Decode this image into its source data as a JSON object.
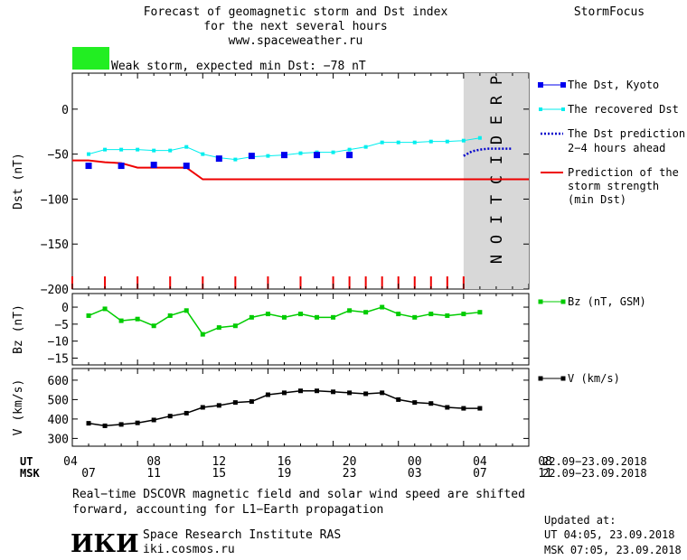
{
  "header": {
    "title_line1": "Forecast of geomagnetic storm and Dst index",
    "title_line2": "for the next several hours",
    "url": "www.spaceweather.ru",
    "brand": "StormFocus"
  },
  "status": {
    "color": "#22ee22",
    "text": "Weak storm, expected min Dst: −78 nT"
  },
  "prediction_label": "PREDICTION",
  "legend": {
    "dst_kyoto": "The Dst, Kyoto",
    "recovered": "The recovered Dst",
    "prediction_l1": "The Dst prediction",
    "prediction_l2": "2−4 hours ahead",
    "strength_l1": "Prediction of the",
    "strength_l2": "storm strength",
    "strength_l3": "(min Dst)",
    "bz": "Bz (nT, GSM)",
    "v": "V (km/s)"
  },
  "time_axis": {
    "ut_label": "UT",
    "msk_label": "MSK",
    "ut_ticks": [
      "04",
      "08",
      "12",
      "16",
      "20",
      "00",
      "04",
      "08"
    ],
    "msk_ticks": [
      "07",
      "11",
      "15",
      "19",
      "23",
      "03",
      "07",
      "11"
    ],
    "ut_dates": "22.09−23.09.2018",
    "msk_dates": "22.09−23.09.2018"
  },
  "footer": {
    "note_line1": "Real−time DSCOVR magnetic field and solar wind speed are shifted",
    "note_line2": "forward, accounting for L1−Earth propagation",
    "logo_text": "ИКИ",
    "institute": "Space Research Institute RAS",
    "website": "iki.cosmos.ru",
    "updated_label": "Updated at:",
    "updated_ut": "UT   04:05, 23.09.2018",
    "updated_msk": "MSK 07:05, 23.09.2018"
  },
  "chart_data": [
    {
      "type": "line",
      "ylabel": "Dst (nT)",
      "ylim": [
        -200,
        40
      ],
      "yticks": [
        0,
        -50,
        -100,
        -150,
        -200
      ],
      "x_unit": "hours from 22.09.2018 03:00 UT",
      "xlim": [
        0,
        28
      ],
      "prediction_region": [
        24,
        28
      ],
      "series": [
        {
          "name": "The Dst, Kyoto",
          "color": "#0000ee",
          "x": [
            1,
            3,
            5,
            7,
            9,
            11,
            13,
            15,
            17
          ],
          "y": [
            -63,
            -63,
            -62,
            -63,
            -55,
            -52,
            -51,
            -51,
            -51
          ]
        },
        {
          "name": "The recovered Dst",
          "color": "#00eeee",
          "x": [
            1,
            2,
            3,
            4,
            5,
            6,
            7,
            8,
            9,
            10,
            11,
            12,
            13,
            14,
            15,
            16,
            17,
            18,
            19,
            20,
            21,
            22,
            23,
            24,
            25
          ],
          "y": [
            -50,
            -45,
            -45,
            -45,
            -46,
            -46,
            -42,
            -50,
            -54,
            -56,
            -53,
            -52,
            -51,
            -49,
            -48,
            -48,
            -45,
            -42,
            -37,
            -37,
            -37,
            -36,
            -36,
            -35,
            -32
          ]
        },
        {
          "name": "The Dst prediction 2−4 hours ahead",
          "color": "#0000cc",
          "x": [
            24,
            24.5,
            25,
            25.5,
            26,
            26.5,
            27
          ],
          "y": [
            -52,
            -47,
            -45,
            -44,
            -44,
            -44,
            -44
          ]
        },
        {
          "name": "Prediction of the storm strength (min Dst)",
          "color": "#ee0000",
          "x": [
            0,
            1,
            2,
            3,
            4,
            5,
            6,
            7,
            8,
            28
          ],
          "y": [
            -57,
            -57,
            -59,
            -60,
            -65,
            -65,
            -65,
            -65,
            -78,
            -78
          ]
        }
      ],
      "storm_markers_x": [
        0,
        2,
        4,
        6,
        8,
        10,
        12,
        14,
        16,
        17,
        18,
        19,
        20,
        21,
        22,
        23,
        24
      ]
    },
    {
      "type": "line",
      "ylabel": "Bz (nT)",
      "ylim": [
        -17,
        4
      ],
      "yticks": [
        0,
        -5,
        -10,
        -15
      ],
      "series": [
        {
          "name": "Bz (nT, GSM)",
          "color": "#00cc00",
          "x": [
            1,
            2,
            3,
            4,
            5,
            6,
            7,
            8,
            9,
            10,
            11,
            12,
            13,
            14,
            15,
            16,
            17,
            18,
            19,
            20,
            21,
            22,
            23,
            24,
            25
          ],
          "y": [
            -2.5,
            -0.5,
            -4,
            -3.5,
            -5.5,
            -2.5,
            -1,
            -8,
            -6,
            -5.5,
            -3,
            -2,
            -3,
            -2,
            -3,
            -3,
            -1,
            -1.5,
            0,
            -2,
            -3,
            -2,
            -2.5,
            -2,
            -1.5
          ]
        }
      ]
    },
    {
      "type": "line",
      "ylabel": "V (km/s)",
      "ylim": [
        260,
        660
      ],
      "yticks": [
        300,
        400,
        500,
        600
      ],
      "xlabel": "UT / MSK",
      "series": [
        {
          "name": "V (km/s)",
          "color": "#000000",
          "x": [
            1,
            2,
            3,
            4,
            5,
            6,
            7,
            8,
            9,
            10,
            11,
            12,
            13,
            14,
            15,
            16,
            17,
            18,
            19,
            20,
            21,
            22,
            23,
            24,
            25
          ],
          "y": [
            378,
            365,
            372,
            380,
            395,
            415,
            430,
            460,
            470,
            485,
            490,
            525,
            535,
            545,
            545,
            540,
            535,
            530,
            535,
            500,
            485,
            480,
            460,
            455,
            455
          ]
        }
      ]
    }
  ]
}
